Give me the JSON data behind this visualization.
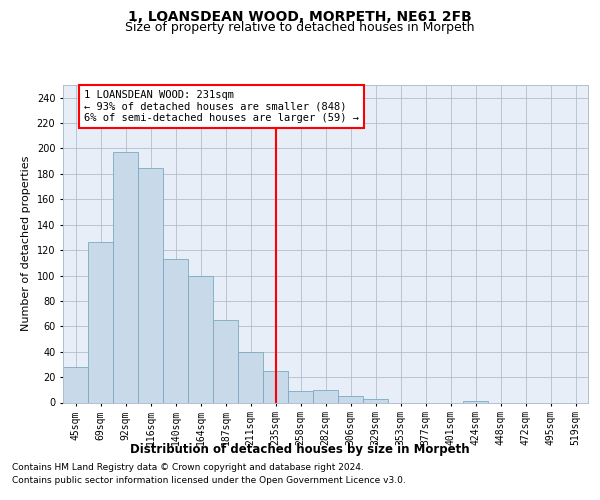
{
  "title": "1, LOANSDEAN WOOD, MORPETH, NE61 2FB",
  "subtitle": "Size of property relative to detached houses in Morpeth",
  "xlabel": "Distribution of detached houses by size in Morpeth",
  "ylabel": "Number of detached properties",
  "categories": [
    "45sqm",
    "69sqm",
    "92sqm",
    "116sqm",
    "140sqm",
    "164sqm",
    "187sqm",
    "211sqm",
    "235sqm",
    "258sqm",
    "282sqm",
    "306sqm",
    "329sqm",
    "353sqm",
    "377sqm",
    "401sqm",
    "424sqm",
    "448sqm",
    "472sqm",
    "495sqm",
    "519sqm"
  ],
  "values": [
    28,
    126,
    197,
    185,
    113,
    100,
    65,
    40,
    25,
    9,
    10,
    5,
    3,
    0,
    0,
    0,
    1,
    0,
    0,
    0,
    0
  ],
  "bar_color": "#c8daea",
  "bar_edge_color": "#7aaabf",
  "vline_x": 8,
  "vline_color": "red",
  "annotation_text": "1 LOANSDEAN WOOD: 231sqm\n← 93% of detached houses are smaller (848)\n6% of semi-detached houses are larger (59) →",
  "annotation_box_color": "white",
  "annotation_box_edge_color": "red",
  "ylim": [
    0,
    250
  ],
  "yticks": [
    0,
    20,
    40,
    60,
    80,
    100,
    120,
    140,
    160,
    180,
    200,
    220,
    240
  ],
  "bg_color": "#e8eef8",
  "grid_color": "#b0bfcf",
  "footer_line1": "Contains HM Land Registry data © Crown copyright and database right 2024.",
  "footer_line2": "Contains public sector information licensed under the Open Government Licence v3.0.",
  "title_fontsize": 10,
  "subtitle_fontsize": 9,
  "xlabel_fontsize": 8.5,
  "ylabel_fontsize": 8,
  "tick_fontsize": 7,
  "footer_fontsize": 6.5,
  "annotation_fontsize": 7.5
}
